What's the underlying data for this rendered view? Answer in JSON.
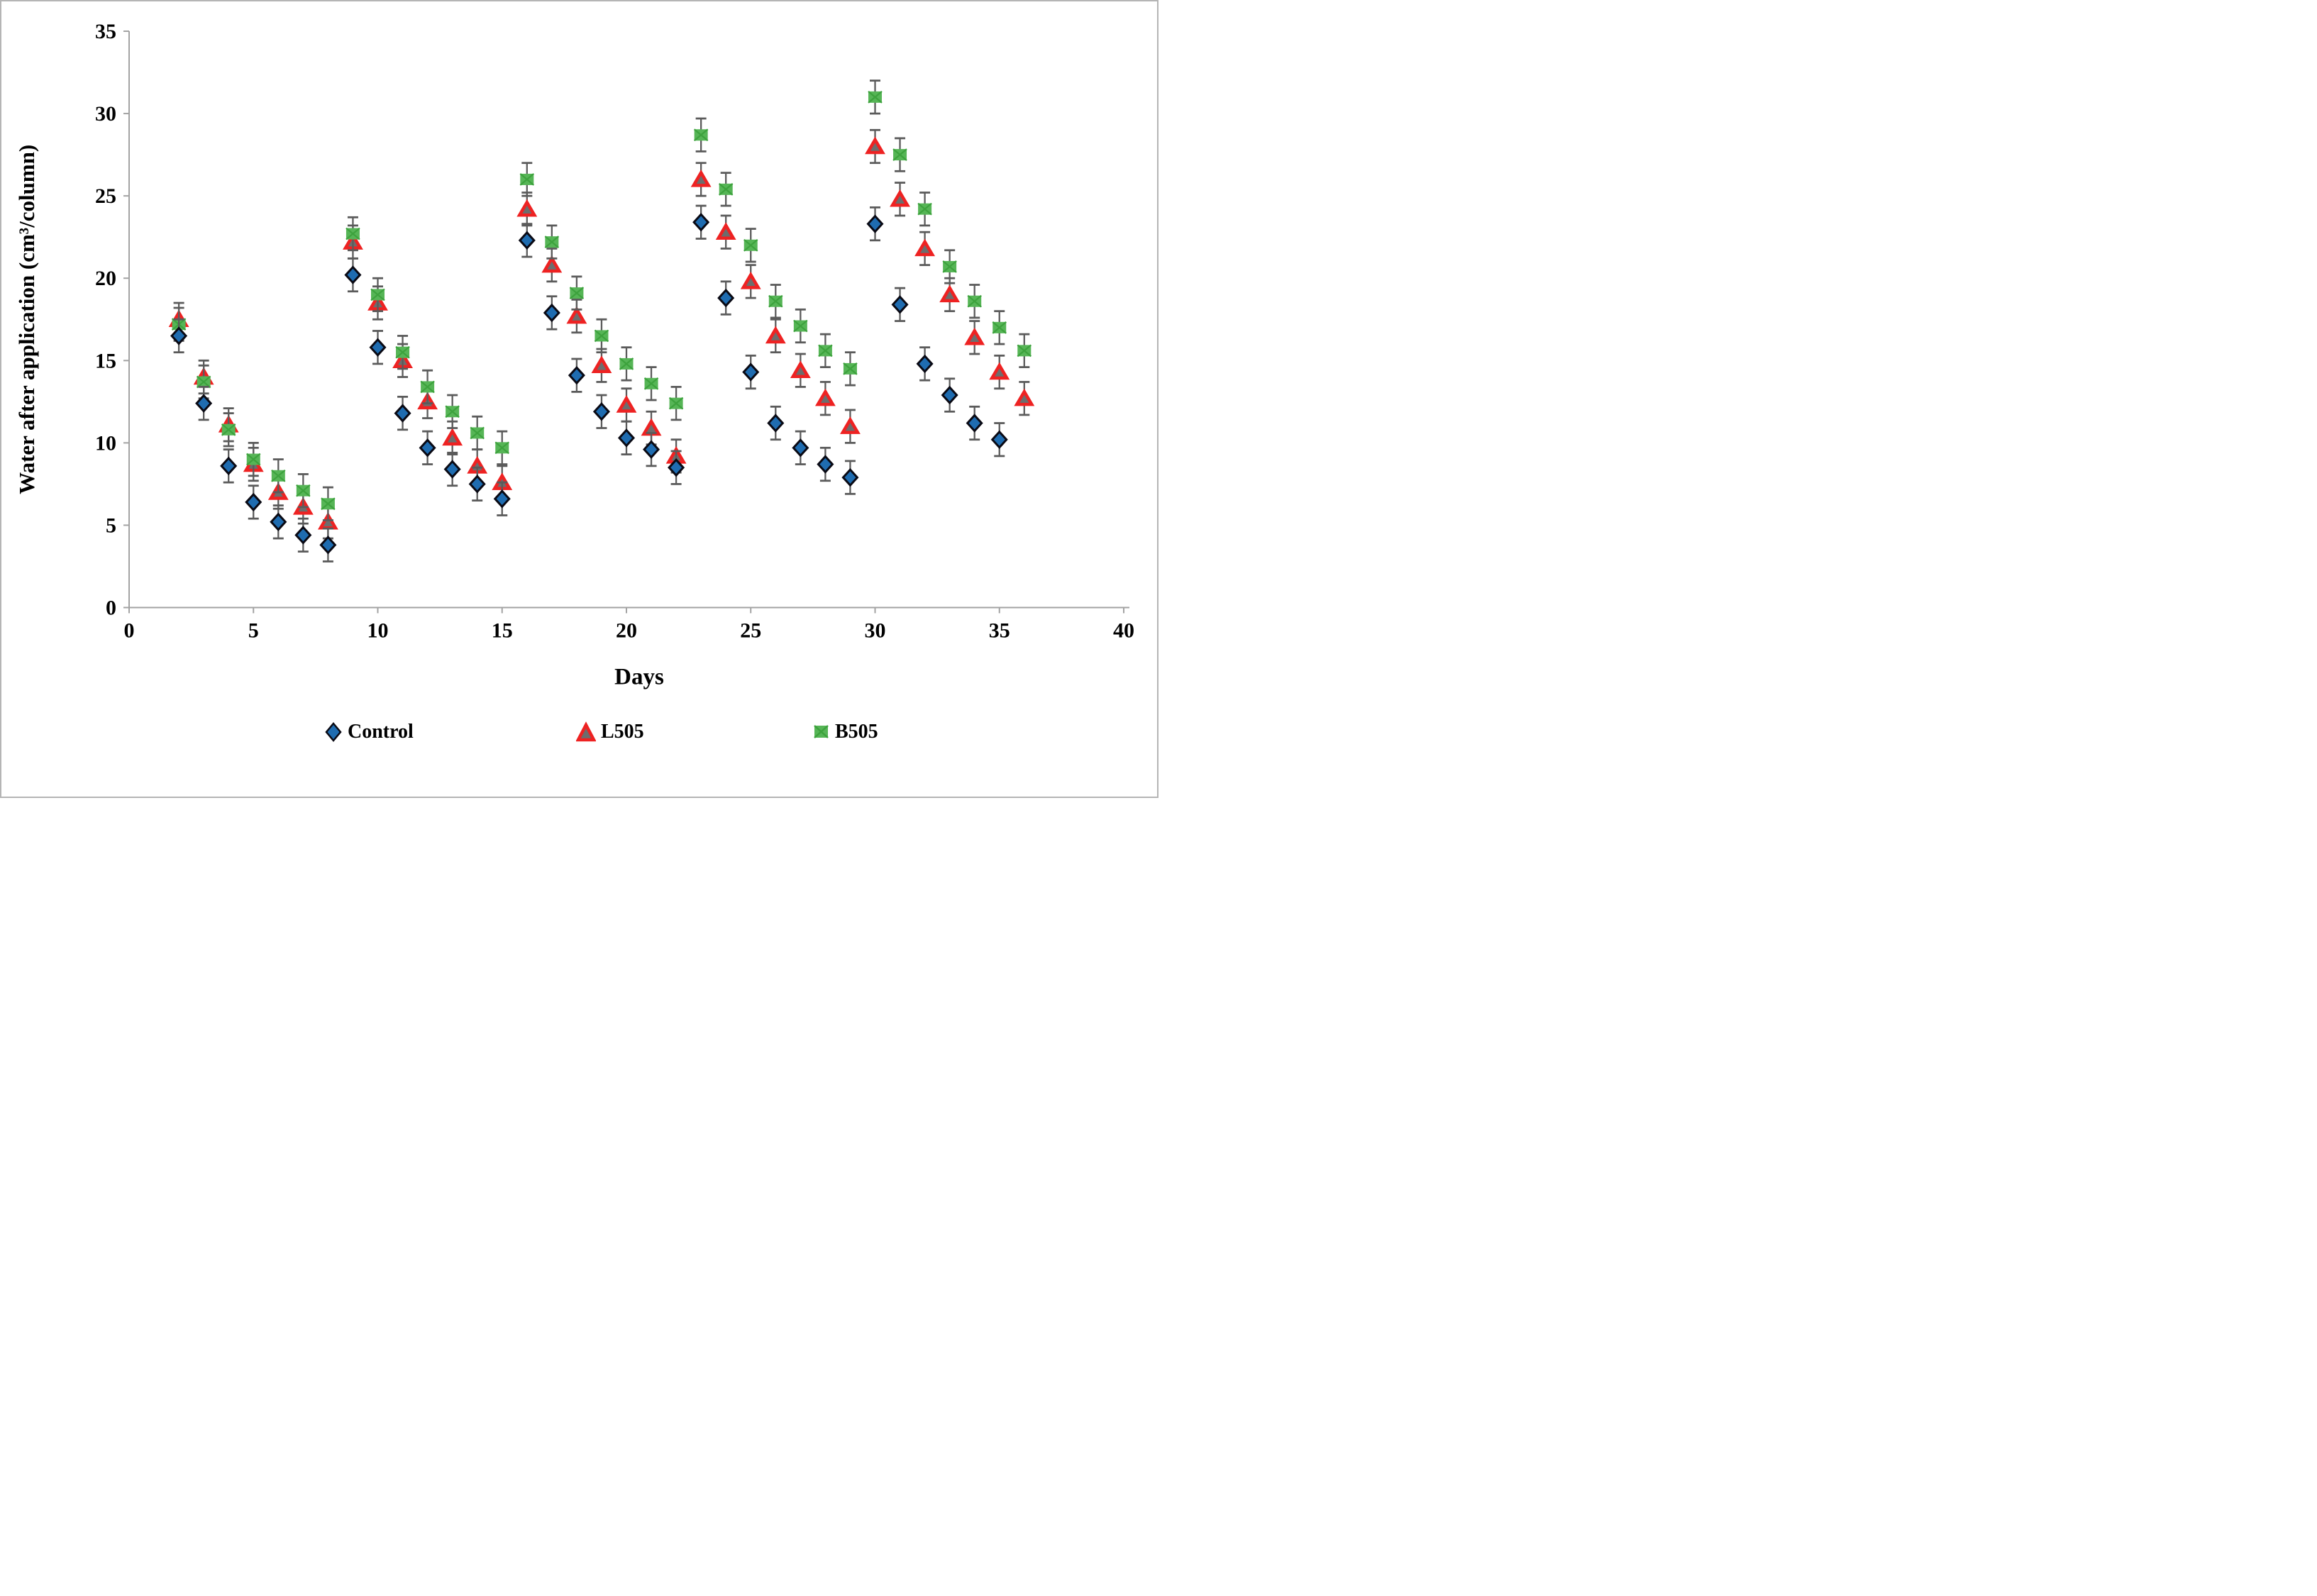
{
  "figure": {
    "background": "#ffffff",
    "border_color": "#b5b5b5"
  },
  "chart_data": {
    "type": "scatter",
    "title": "",
    "xlabel": "Days",
    "ylabel": "Water after application (cm³/column)",
    "xlim": [
      0,
      40
    ],
    "ylim": [
      0,
      35
    ],
    "x_ticks": [
      0,
      5,
      10,
      15,
      20,
      25,
      30,
      35,
      40
    ],
    "y_ticks": [
      0,
      5,
      10,
      15,
      20,
      25,
      30,
      35
    ],
    "grid": false,
    "legend_position": "bottom",
    "error_bar": 1.0,
    "days": [
      2,
      3,
      4,
      5,
      6,
      7,
      8,
      9,
      10,
      11,
      12,
      13,
      14,
      15,
      16,
      17,
      18,
      19,
      20,
      21,
      22,
      23,
      24,
      25,
      26,
      27,
      28,
      29,
      30,
      31,
      32,
      33,
      34,
      35,
      36
    ],
    "series": [
      {
        "name": "Control",
        "marker": "diamond",
        "color": "#1f6cb0",
        "edge_color": "#0a0a14",
        "values": [
          16.5,
          12.4,
          8.6,
          6.4,
          5.2,
          4.4,
          3.8,
          20.2,
          15.8,
          11.8,
          9.7,
          8.4,
          7.5,
          6.6,
          22.3,
          17.9,
          14.1,
          11.9,
          10.3,
          9.6,
          8.5,
          23.4,
          18.8,
          14.3,
          11.2,
          9.7,
          8.7,
          7.9,
          23.3,
          18.4,
          14.8,
          12.9,
          11.2,
          10.2,
          null
        ]
      },
      {
        "name": "L505",
        "marker": "triangle",
        "color": "#ee2222",
        "edge_color": "#6d6d6d",
        "values": [
          17.5,
          14.0,
          11.1,
          8.7,
          7.0,
          6.1,
          5.2,
          22.2,
          18.5,
          15.0,
          12.5,
          10.3,
          8.6,
          7.6,
          24.2,
          20.8,
          17.7,
          14.7,
          12.3,
          10.9,
          9.2,
          26.0,
          22.8,
          19.8,
          16.5,
          14.4,
          12.7,
          11.0,
          28.0,
          24.8,
          21.8,
          19.0,
          16.4,
          14.3,
          12.7
        ]
      },
      {
        "name": "B505",
        "marker": "square",
        "color": "#56b556",
        "edge_color": "#3da23d",
        "values": [
          17.2,
          13.7,
          10.8,
          9.0,
          8.0,
          7.1,
          6.3,
          22.7,
          19.0,
          15.5,
          13.4,
          11.9,
          10.6,
          9.7,
          26.0,
          22.2,
          19.1,
          16.5,
          14.8,
          13.6,
          12.4,
          28.7,
          25.4,
          22.0,
          18.6,
          17.1,
          15.6,
          14.5,
          31.0,
          27.5,
          24.2,
          20.7,
          18.6,
          17.0,
          15.6
        ]
      }
    ],
    "error_bar_color": "#5b5b5b",
    "axis_color": "#a3a3a3"
  }
}
